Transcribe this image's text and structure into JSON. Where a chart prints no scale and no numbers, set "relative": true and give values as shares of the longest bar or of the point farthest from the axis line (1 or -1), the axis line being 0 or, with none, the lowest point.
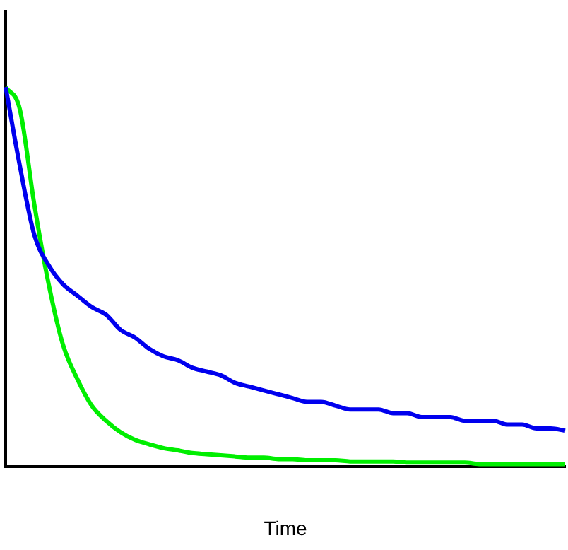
{
  "chart_data": {
    "type": "line",
    "relative": true,
    "xlabel": "Time",
    "categories": [
      null,
      null,
      null,
      null,
      null,
      null,
      null,
      null,
      null,
      null,
      null,
      null,
      null,
      null,
      null,
      null,
      null,
      null,
      null,
      null,
      null,
      null,
      null,
      null,
      null,
      null,
      null,
      null,
      null,
      null,
      null,
      null,
      null,
      null,
      null,
      null,
      null,
      null,
      null,
      null
    ],
    "series": [
      {
        "color": "#0000ee",
        "values": [
          1,
          0.79,
          0.61,
          0.53,
          0.48,
          0.45,
          0.42,
          0.4,
          0.36,
          0.34,
          0.31,
          0.29,
          0.28,
          0.26,
          0.25,
          0.24,
          0.22,
          0.21,
          0.2,
          0.19,
          0.18,
          0.17,
          0.17,
          0.16,
          0.15,
          0.15,
          0.15,
          0.14,
          0.14,
          0.13,
          0.13,
          0.13,
          0.12,
          0.12,
          0.12,
          0.11,
          0.11,
          0.1,
          0.1,
          0.094
        ]
      },
      {
        "color": "#00ee00",
        "values": [
          1,
          0.94,
          0.69,
          0.48,
          0.32,
          0.23,
          0.16,
          0.12,
          0.09,
          0.07,
          0.058,
          0.048,
          0.042,
          0.035,
          0.032,
          0.029,
          0.026,
          0.023,
          0.023,
          0.019,
          0.019,
          0.016,
          0.016,
          0.016,
          0.013,
          0.013,
          0.013,
          0.013,
          0.01,
          0.01,
          0.01,
          0.01,
          0.01,
          0.006,
          0.006,
          0.006,
          0.006,
          0.006,
          0.006,
          0.006
        ]
      }
    ],
    "grid": false,
    "legend": false,
    "marker": "none",
    "line_style": "solid"
  }
}
